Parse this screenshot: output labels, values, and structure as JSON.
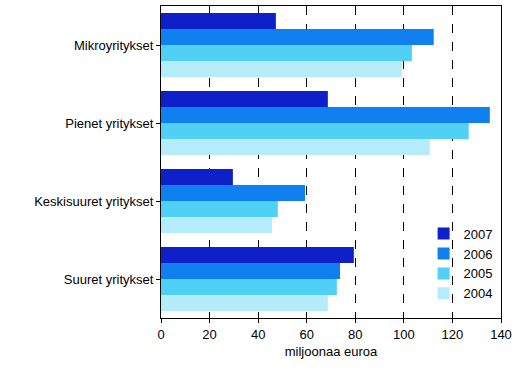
{
  "chart_data": {
    "type": "bar",
    "orientation": "horizontal",
    "categories": [
      "Mikroyritykset",
      "Pienet yritykset",
      "Keskisuuret yritykset",
      "Suuret yritykset"
    ],
    "series": [
      {
        "name": "2007",
        "color": "#1020c8",
        "values": [
          47.3,
          68.7,
          29.6,
          79.4
        ]
      },
      {
        "name": "2006",
        "color": "#1080f0",
        "values": [
          112.3,
          135.4,
          59.3,
          73.7
        ]
      },
      {
        "name": "2005",
        "color": "#50d0f4",
        "values": [
          103.3,
          126.7,
          48.1,
          72.4
        ]
      },
      {
        "name": "2004",
        "color": "#b4ecfa",
        "values": [
          99.2,
          110.7,
          45.7,
          68.7
        ]
      }
    ],
    "xlabel": "miljoonaa euroa",
    "xlim": [
      0,
      140
    ],
    "xticks": [
      0,
      20,
      40,
      60,
      80,
      100,
      120,
      140
    ],
    "grid": true,
    "legend": "lower right"
  }
}
